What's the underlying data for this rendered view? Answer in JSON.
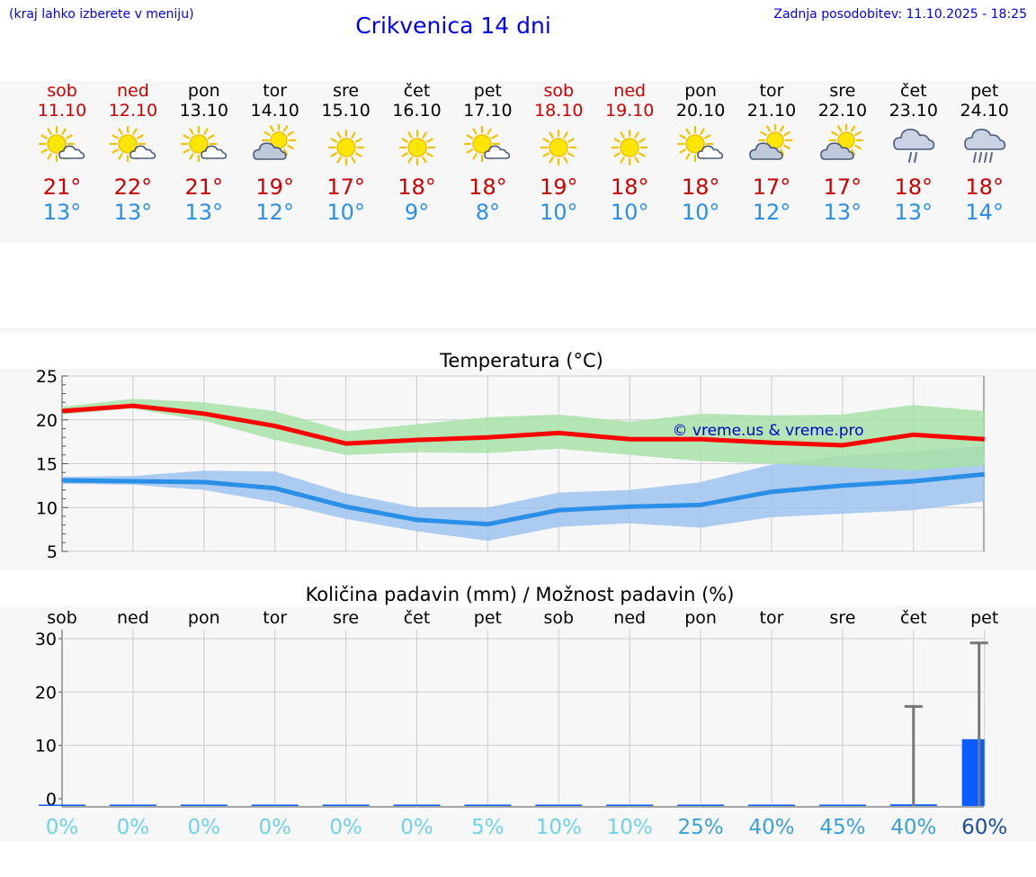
{
  "header": {
    "hint": "(kraj lahko izberete v meniju)",
    "title": "Crikvenica 14 dni",
    "updated": "Zadnja posodobitev: 11.10.2025 - 18:25"
  },
  "days": [
    {
      "name": "sob",
      "date": "11.10",
      "weekend": true,
      "icon": "sun-cloud-icon",
      "max": "21°",
      "min": "13°"
    },
    {
      "name": "ned",
      "date": "12.10",
      "weekend": true,
      "icon": "sun-cloud-icon",
      "max": "22°",
      "min": "13°"
    },
    {
      "name": "pon",
      "date": "13.10",
      "weekend": false,
      "icon": "sun-cloud-icon",
      "max": "21°",
      "min": "13°"
    },
    {
      "name": "tor",
      "date": "14.10",
      "weekend": false,
      "icon": "cloud-sun-icon",
      "max": "19°",
      "min": "12°"
    },
    {
      "name": "sre",
      "date": "15.10",
      "weekend": false,
      "icon": "sun-icon",
      "max": "17°",
      "min": "10°"
    },
    {
      "name": "čet",
      "date": "16.10",
      "weekend": false,
      "icon": "sun-icon",
      "max": "18°",
      "min": "9°"
    },
    {
      "name": "pet",
      "date": "17.10",
      "weekend": false,
      "icon": "sun-cloud-icon",
      "max": "18°",
      "min": "8°"
    },
    {
      "name": "sob",
      "date": "18.10",
      "weekend": true,
      "icon": "sun-icon",
      "max": "19°",
      "min": "10°"
    },
    {
      "name": "ned",
      "date": "19.10",
      "weekend": true,
      "icon": "sun-icon",
      "max": "18°",
      "min": "10°"
    },
    {
      "name": "pon",
      "date": "20.10",
      "weekend": false,
      "icon": "sun-cloud-icon",
      "max": "18°",
      "min": "10°"
    },
    {
      "name": "tor",
      "date": "21.10",
      "weekend": false,
      "icon": "cloud-sun-icon",
      "max": "17°",
      "min": "12°"
    },
    {
      "name": "sre",
      "date": "22.10",
      "weekend": false,
      "icon": "cloud-sun-icon",
      "max": "17°",
      "min": "13°"
    },
    {
      "name": "čet",
      "date": "23.10",
      "weekend": false,
      "icon": "rain-cloud-icon",
      "max": "18°",
      "min": "13°"
    },
    {
      "name": "pet",
      "date": "24.10",
      "weekend": false,
      "icon": "heavy-rain-cloud-icon",
      "max": "18°",
      "min": "14°"
    }
  ],
  "chart_data": [
    {
      "type": "line",
      "title": "Temperatura (°C)",
      "watermark": "© vreme.us & vreme.pro",
      "ylim": [
        5,
        25
      ],
      "yticks": [
        5,
        10,
        15,
        20,
        25
      ],
      "x": [
        0,
        1,
        2,
        3,
        4,
        5,
        6,
        7,
        8,
        9,
        10,
        11,
        12,
        13
      ],
      "series": [
        {
          "name": "max",
          "color": "#ff0000",
          "values": [
            21,
            21.6,
            20.7,
            19.3,
            17.3,
            17.7,
            18,
            18.5,
            17.8,
            17.8,
            17.4,
            17.1,
            18.3,
            17.8
          ]
        },
        {
          "name": "max-range-upper",
          "color": "#a8e2a8",
          "values": [
            21.5,
            22.4,
            22,
            21,
            18.7,
            19.5,
            20.3,
            20.6,
            19.8,
            20.7,
            20.5,
            20.6,
            21.7,
            21
          ]
        },
        {
          "name": "max-range-lower",
          "color": "#a8e2a8",
          "values": [
            20.6,
            21.3,
            19.9,
            17.7,
            16,
            16.3,
            16.2,
            16.7,
            16,
            15.3,
            15,
            14.6,
            14.2,
            14.8
          ]
        },
        {
          "name": "min",
          "color": "#2a8fe6",
          "values": [
            13.1,
            13,
            12.9,
            12.2,
            10.1,
            8.6,
            8.1,
            9.7,
            10.1,
            10.3,
            11.8,
            12.5,
            13,
            13.8
          ]
        },
        {
          "name": "min-range-upper",
          "color": "#9ec3f0",
          "values": [
            13.5,
            13.6,
            14.2,
            14.1,
            11.6,
            10,
            10,
            11.7,
            12,
            12.9,
            14.9,
            15.9,
            16.4,
            17
          ]
        },
        {
          "name": "min-range-lower",
          "color": "#9ec3f0",
          "values": [
            12.7,
            12.6,
            12,
            10.6,
            8.7,
            7.3,
            6.2,
            7.8,
            8.2,
            7.7,
            8.9,
            9.3,
            9.7,
            10.7
          ]
        }
      ]
    },
    {
      "type": "bar",
      "title": "Količina padavin (mm) / Možnost padavin (%)",
      "ylim": [
        0,
        30
      ],
      "yticks": [
        0,
        10,
        20,
        30
      ],
      "categories": [
        "sob",
        "ned",
        "pon",
        "tor",
        "sre",
        "čet",
        "pet",
        "sob",
        "ned",
        "pon",
        "tor",
        "sre",
        "čet",
        "pet"
      ],
      "values": [
        0,
        0,
        0,
        0,
        0,
        0,
        0,
        0,
        0,
        0,
        0,
        0,
        0.3,
        12.5
      ],
      "error_max": [
        0,
        0,
        0,
        0,
        0,
        0,
        0,
        0,
        0,
        0,
        0,
        0,
        17.3,
        29.2
      ],
      "probability": [
        "0%",
        "0%",
        "0%",
        "0%",
        "0%",
        "0%",
        "5%",
        "10%",
        "10%",
        "25%",
        "40%",
        "45%",
        "40%",
        "60%"
      ],
      "probability_colors": [
        "#6fd3e8",
        "#6fd3e8",
        "#6fd3e8",
        "#6fd3e8",
        "#6fd3e8",
        "#6fd3e8",
        "#6fd3e8",
        "#6fd3e8",
        "#6fd3e8",
        "#3aa0d8",
        "#3aa0d8",
        "#3aa0d8",
        "#3aa0d8",
        "#1a4fa0"
      ]
    }
  ]
}
